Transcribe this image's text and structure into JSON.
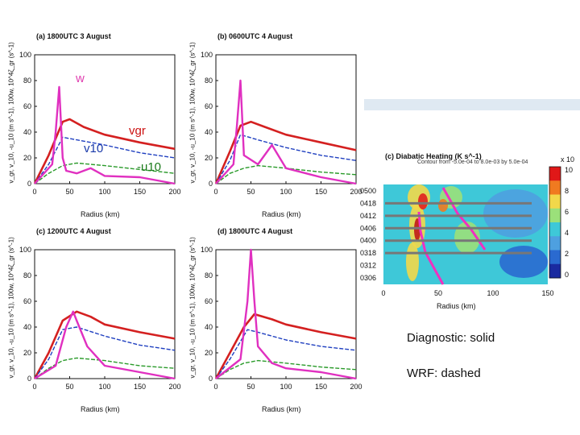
{
  "panels": [
    {
      "id": "a",
      "title": "(a) 1800UTC 3 August"
    },
    {
      "id": "b",
      "title": "(b) 0600UTC 4 August"
    },
    {
      "id": "c",
      "title": "(c) 1200UTC 4 August"
    },
    {
      "id": "d",
      "title": "(d) 1800UTC 4 August"
    }
  ],
  "axes": {
    "ylabel": "v_gr, v_10, -u_10 (m s^-1), 100w, 10^4ζ_gr (s^-1)",
    "xlabel": "Radius (km)",
    "xticks": [
      "0",
      "50",
      "100",
      "150",
      "200"
    ],
    "yticks": [
      "0",
      "20",
      "40",
      "60",
      "80",
      "100"
    ]
  },
  "legend_labels": {
    "w": "w",
    "vgr": "vgr",
    "v10": "v10",
    "u10": "-u10"
  },
  "diabatic": {
    "title": "(c) Diabatic Heating (K s^-1)",
    "subtitle": "Contour from -5.0e-04 to 8.0e-03 by 5.0e-04",
    "times": [
      "0500",
      "0418",
      "0412",
      "0406",
      "0400",
      "0318",
      "0312",
      "0306"
    ],
    "xticks": [
      "0",
      "50",
      "100",
      "150"
    ],
    "xlabel": "Radius (km)",
    "colorbar_ticks": [
      "10",
      "8",
      "6",
      "4",
      "2",
      "0"
    ],
    "colorbar_exponent": "x 10"
  },
  "notes": {
    "diagnostic": "Diagnostic: solid",
    "wrf": "WRF: dashed"
  },
  "chart_data": [
    {
      "type": "line",
      "title": "(a) 1800UTC 3 August",
      "xlabel": "Radius (km)",
      "ylim": [
        0,
        100
      ],
      "xlim": [
        0,
        200
      ],
      "series": [
        {
          "name": "vgr",
          "x": [
            0,
            20,
            40,
            50,
            70,
            100,
            150,
            200
          ],
          "y": [
            0,
            22,
            48,
            50,
            44,
            38,
            32,
            27
          ]
        },
        {
          "name": "v10",
          "x": [
            0,
            20,
            40,
            60,
            100,
            150,
            200
          ],
          "y": [
            0,
            15,
            36,
            34,
            30,
            24,
            20
          ]
        },
        {
          "name": "-u10",
          "x": [
            0,
            20,
            40,
            60,
            100,
            150,
            200
          ],
          "y": [
            0,
            8,
            14,
            16,
            14,
            11,
            8
          ]
        },
        {
          "name": "w",
          "x": [
            0,
            25,
            30,
            35,
            40,
            45,
            60,
            80,
            100,
            150,
            200
          ],
          "y": [
            0,
            15,
            40,
            75,
            20,
            10,
            8,
            12,
            6,
            5,
            0
          ]
        }
      ]
    },
    {
      "type": "line",
      "title": "(b) 0600UTC 4 August",
      "xlabel": "Radius (km)",
      "ylim": [
        0,
        100
      ],
      "xlim": [
        0,
        200
      ],
      "series": [
        {
          "name": "vgr",
          "x": [
            0,
            20,
            35,
            50,
            70,
            100,
            150,
            200
          ],
          "y": [
            0,
            25,
            45,
            48,
            44,
            38,
            32,
            26
          ]
        },
        {
          "name": "v10",
          "x": [
            0,
            20,
            35,
            60,
            100,
            150,
            200
          ],
          "y": [
            0,
            18,
            38,
            34,
            28,
            22,
            18
          ]
        },
        {
          "name": "-u10",
          "x": [
            0,
            20,
            40,
            60,
            100,
            150,
            200
          ],
          "y": [
            0,
            8,
            12,
            14,
            12,
            9,
            7
          ]
        },
        {
          "name": "w",
          "x": [
            0,
            25,
            30,
            35,
            40,
            60,
            80,
            100,
            150,
            200
          ],
          "y": [
            0,
            15,
            45,
            80,
            22,
            15,
            30,
            12,
            5,
            0
          ]
        }
      ]
    },
    {
      "type": "line",
      "title": "(c) 1200UTC 4 August",
      "xlabel": "Radius (km)",
      "ylim": [
        0,
        100
      ],
      "xlim": [
        0,
        200
      ],
      "series": [
        {
          "name": "vgr",
          "x": [
            0,
            20,
            40,
            60,
            80,
            100,
            150,
            200
          ],
          "y": [
            0,
            20,
            45,
            52,
            48,
            42,
            36,
            31
          ]
        },
        {
          "name": "v10",
          "x": [
            0,
            20,
            40,
            60,
            100,
            150,
            200
          ],
          "y": [
            0,
            15,
            38,
            40,
            33,
            26,
            22
          ]
        },
        {
          "name": "-u10",
          "x": [
            0,
            20,
            40,
            60,
            100,
            150,
            200
          ],
          "y": [
            0,
            8,
            14,
            16,
            14,
            10,
            8
          ]
        },
        {
          "name": "w",
          "x": [
            0,
            30,
            45,
            55,
            60,
            75,
            100,
            150,
            200
          ],
          "y": [
            0,
            10,
            40,
            52,
            45,
            25,
            10,
            5,
            0
          ]
        }
      ]
    },
    {
      "type": "line",
      "title": "(d) 1800UTC 4 August",
      "xlabel": "Radius (km)",
      "ylim": [
        0,
        100
      ],
      "xlim": [
        0,
        200
      ],
      "series": [
        {
          "name": "vgr",
          "x": [
            0,
            20,
            40,
            55,
            80,
            100,
            150,
            200
          ],
          "y": [
            0,
            20,
            40,
            50,
            46,
            42,
            36,
            31
          ]
        },
        {
          "name": "v10",
          "x": [
            0,
            20,
            45,
            60,
            100,
            150,
            200
          ],
          "y": [
            0,
            15,
            38,
            36,
            30,
            25,
            22
          ]
        },
        {
          "name": "-u10",
          "x": [
            0,
            20,
            40,
            60,
            100,
            150,
            200
          ],
          "y": [
            0,
            7,
            12,
            14,
            12,
            9,
            7
          ]
        },
        {
          "name": "w",
          "x": [
            0,
            35,
            45,
            50,
            55,
            60,
            80,
            100,
            150,
            200
          ],
          "y": [
            0,
            15,
            60,
            100,
            60,
            25,
            12,
            8,
            5,
            0
          ]
        }
      ]
    }
  ]
}
